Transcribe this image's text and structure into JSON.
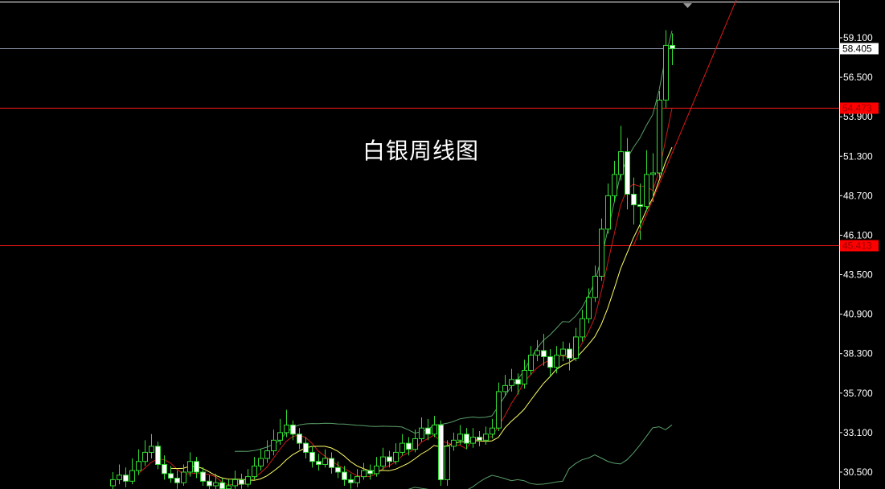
{
  "chart_data": {
    "type": "candlestick",
    "title": "白银周线图",
    "colors": {
      "background": "#000000",
      "candle_outline": "#33dd33",
      "bull_fill": "#000000",
      "bear_fill": "#ffffff",
      "ma_fast": "#cc1a1a",
      "ma_slow": "#ffff66",
      "bollinger": "#5aa06a",
      "level_line": "#ff1a1a",
      "price_line": "#8a94a8",
      "trendline": "#e01818"
    },
    "y_axis": {
      "range": [
        29.5,
        61.5
      ],
      "ticks": [
        "59.100",
        "56.500",
        "53.900",
        "51.300",
        "48.700",
        "46.100",
        "43.500",
        "40.900",
        "38.300",
        "35.700",
        "33.100",
        "30.500"
      ]
    },
    "current_price": "58.405",
    "levels": [
      "54.473",
      "45.413"
    ],
    "trendline": {
      "from": [
        81,
        45.4
      ],
      "to": [
        97,
        61.6
      ]
    },
    "candles_ohlc": [
      [
        29.6,
        30.5,
        29.2,
        30.0
      ],
      [
        30.0,
        31.0,
        29.7,
        30.3
      ],
      [
        30.3,
        30.8,
        29.5,
        29.9
      ],
      [
        29.9,
        31.4,
        29.7,
        30.6
      ],
      [
        30.6,
        32.0,
        30.3,
        31.2
      ],
      [
        31.2,
        32.6,
        30.9,
        31.8
      ],
      [
        31.8,
        33.0,
        31.4,
        32.2
      ],
      [
        32.2,
        32.5,
        30.7,
        31.0
      ],
      [
        31.0,
        31.6,
        30.0,
        30.4
      ],
      [
        30.4,
        30.9,
        29.8,
        30.1
      ],
      [
        30.1,
        30.6,
        29.4,
        29.8
      ],
      [
        29.8,
        31.0,
        29.6,
        30.5
      ],
      [
        30.5,
        31.8,
        30.2,
        31.2
      ],
      [
        31.2,
        31.5,
        30.1,
        30.5
      ],
      [
        30.5,
        30.8,
        29.6,
        29.9
      ],
      [
        29.9,
        30.3,
        29.2,
        29.6
      ],
      [
        29.6,
        30.4,
        29.3,
        29.8
      ],
      [
        29.8,
        30.1,
        29.0,
        29.4
      ],
      [
        29.4,
        30.0,
        29.1,
        29.6
      ],
      [
        29.6,
        30.6,
        29.4,
        30.0
      ],
      [
        30.0,
        30.4,
        29.4,
        29.7
      ],
      [
        29.7,
        30.7,
        29.5,
        30.2
      ],
      [
        30.2,
        31.5,
        30.0,
        30.9
      ],
      [
        30.9,
        32.0,
        30.6,
        31.4
      ],
      [
        31.4,
        32.6,
        31.1,
        31.9
      ],
      [
        31.9,
        33.3,
        31.6,
        32.6
      ],
      [
        32.6,
        34.0,
        32.3,
        33.1
      ],
      [
        33.1,
        34.6,
        32.8,
        33.6
      ],
      [
        33.6,
        33.9,
        32.6,
        33.0
      ],
      [
        33.0,
        33.4,
        32.0,
        32.4
      ],
      [
        32.4,
        32.8,
        31.4,
        31.8
      ],
      [
        31.8,
        32.2,
        30.8,
        31.2
      ],
      [
        31.2,
        31.7,
        30.6,
        31.0
      ],
      [
        31.0,
        32.0,
        30.8,
        31.4
      ],
      [
        31.4,
        31.8,
        30.4,
        30.8
      ],
      [
        30.8,
        31.2,
        30.1,
        30.5
      ],
      [
        30.5,
        30.9,
        29.6,
        30.0
      ],
      [
        30.0,
        30.4,
        29.4,
        29.8
      ],
      [
        29.8,
        30.7,
        29.5,
        30.2
      ],
      [
        30.2,
        31.1,
        30.0,
        30.6
      ],
      [
        30.6,
        31.0,
        30.0,
        30.4
      ],
      [
        30.4,
        31.5,
        30.2,
        30.9
      ],
      [
        30.9,
        32.1,
        30.6,
        31.5
      ],
      [
        31.5,
        31.9,
        30.8,
        31.2
      ],
      [
        31.2,
        32.4,
        31.0,
        31.8
      ],
      [
        31.8,
        33.0,
        31.6,
        32.4
      ],
      [
        32.4,
        32.8,
        31.6,
        32.0
      ],
      [
        32.0,
        33.3,
        31.8,
        32.7
      ],
      [
        32.7,
        34.1,
        32.5,
        33.4
      ],
      [
        33.4,
        34.0,
        32.6,
        33.0
      ],
      [
        33.0,
        34.2,
        32.8,
        33.6
      ],
      [
        33.6,
        33.9,
        29.6,
        30.0
      ],
      [
        30.0,
        32.6,
        29.6,
        32.2
      ],
      [
        32.2,
        33.1,
        31.9,
        32.6
      ],
      [
        32.6,
        33.6,
        32.3,
        33.0
      ],
      [
        33.0,
        33.4,
        32.0,
        32.4
      ],
      [
        32.4,
        33.4,
        32.1,
        32.8
      ],
      [
        32.8,
        33.2,
        32.2,
        32.6
      ],
      [
        32.6,
        33.5,
        32.3,
        33.0
      ],
      [
        33.0,
        34.0,
        32.7,
        33.4
      ],
      [
        33.4,
        36.4,
        33.2,
        35.8
      ],
      [
        35.8,
        36.9,
        35.5,
        36.2
      ],
      [
        36.2,
        37.3,
        35.8,
        36.6
      ],
      [
        36.6,
        37.0,
        35.6,
        36.3
      ],
      [
        36.3,
        37.9,
        36.0,
        37.2
      ],
      [
        37.2,
        38.8,
        36.9,
        38.2
      ],
      [
        38.2,
        39.2,
        37.8,
        38.5
      ],
      [
        38.5,
        39.6,
        37.5,
        38.1
      ],
      [
        38.1,
        38.6,
        36.8,
        37.4
      ],
      [
        37.4,
        38.8,
        37.0,
        38.2
      ],
      [
        38.2,
        39.1,
        37.8,
        38.6
      ],
      [
        38.6,
        39.0,
        37.2,
        38.0
      ],
      [
        38.0,
        40.0,
        37.8,
        39.4
      ],
      [
        39.4,
        41.2,
        39.1,
        40.6
      ],
      [
        40.6,
        42.6,
        40.3,
        42.0
      ],
      [
        42.0,
        44.1,
        41.7,
        43.4
      ],
      [
        43.4,
        47.2,
        43.1,
        46.5
      ],
      [
        46.5,
        49.5,
        46.2,
        48.7
      ],
      [
        48.7,
        51.0,
        48.3,
        50.1
      ],
      [
        50.1,
        53.3,
        49.7,
        51.6
      ],
      [
        51.6,
        52.5,
        47.8,
        48.8
      ],
      [
        48.8,
        49.9,
        46.8,
        48.1
      ],
      [
        48.1,
        49.5,
        45.8,
        48.0
      ],
      [
        48.0,
        51.7,
        47.7,
        50.1
      ],
      [
        50.1,
        51.5,
        48.3,
        50.2
      ],
      [
        50.2,
        55.6,
        49.8,
        55.0
      ],
      [
        55.0,
        59.6,
        54.5,
        58.6
      ],
      [
        58.6,
        59.4,
        57.3,
        58.4
      ]
    ]
  }
}
